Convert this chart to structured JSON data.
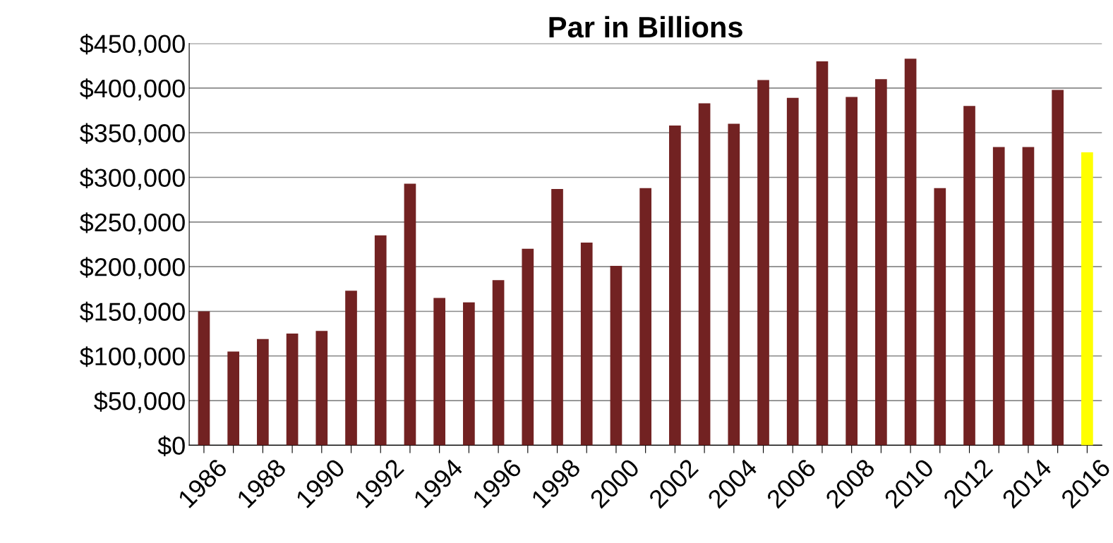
{
  "chart_data": {
    "type": "bar",
    "title": "Par in Billions",
    "categories": [
      "1986",
      null,
      "1988",
      null,
      "1990",
      null,
      "1992",
      null,
      "1994",
      null,
      "1996",
      null,
      "1998",
      null,
      "2000",
      null,
      "2002",
      null,
      "2004",
      null,
      "2006",
      null,
      "2008",
      null,
      "2010",
      null,
      "2012",
      null,
      "2014",
      null,
      "2016"
    ],
    "values": [
      150000,
      105000,
      119000,
      125000,
      128000,
      173000,
      235000,
      293000,
      165000,
      160000,
      185000,
      220000,
      287000,
      227000,
      201000,
      288000,
      358000,
      383000,
      360000,
      409000,
      389000,
      430000,
      390000,
      410000,
      433000,
      288000,
      380000,
      334000,
      334000,
      398000,
      328000
    ],
    "colors": [
      "#722222",
      "#722222",
      "#722222",
      "#722222",
      "#722222",
      "#722222",
      "#722222",
      "#722222",
      "#722222",
      "#722222",
      "#722222",
      "#722222",
      "#722222",
      "#722222",
      "#722222",
      "#722222",
      "#722222",
      "#722222",
      "#722222",
      "#722222",
      "#722222",
      "#722222",
      "#722222",
      "#722222",
      "#722222",
      "#722222",
      "#722222",
      "#722222",
      "#722222",
      "#722222",
      "#ffff00"
    ],
    "ylim": [
      0,
      450000
    ],
    "yticks": [
      {
        "value": 0,
        "label": "$0"
      },
      {
        "value": 50000,
        "label": "$50,000"
      },
      {
        "value": 100000,
        "label": "$100,000"
      },
      {
        "value": 150000,
        "label": "$150,000"
      },
      {
        "value": 200000,
        "label": "$200,000"
      },
      {
        "value": 250000,
        "label": "$250,000"
      },
      {
        "value": 300000,
        "label": "$300,000"
      },
      {
        "value": 350000,
        "label": "$350,000"
      },
      {
        "value": 400000,
        "label": "$400,000"
      },
      {
        "value": 450000,
        "label": "$450,000"
      }
    ],
    "grid": "y"
  }
}
